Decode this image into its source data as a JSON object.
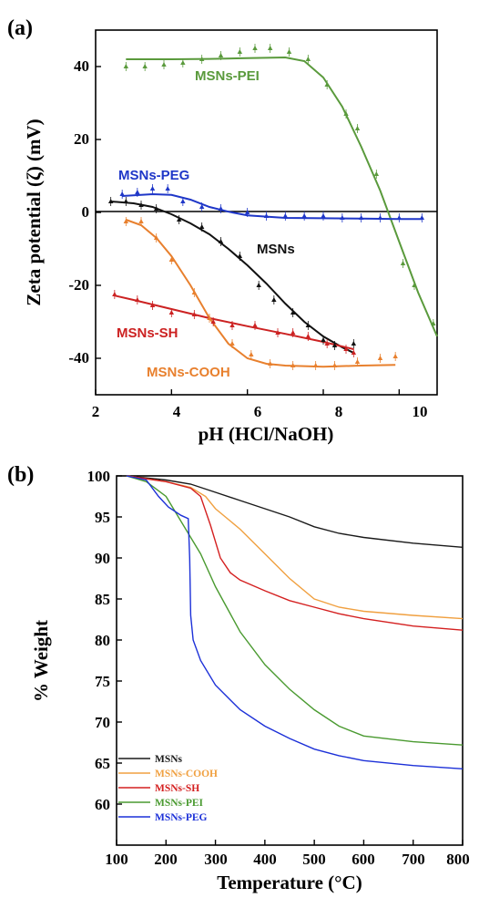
{
  "chart_data": [
    {
      "panel": "(a)",
      "type": "scatter",
      "xlabel": "pH (HCl/NaOH)",
      "ylabel": "Zeta potential (ζ) (mV)",
      "xlim": [
        2,
        11
      ],
      "ylim": [
        -50,
        50
      ],
      "xticks": [
        "2",
        "4",
        "6",
        "8",
        "10"
      ],
      "yticks": [
        "40",
        "20",
        "0",
        "-20",
        "-40"
      ],
      "zero_line": true,
      "series": [
        {
          "name": "MSNs-PEI",
          "color": "#5a9a3c",
          "points": [
            [
              2.8,
              40
            ],
            [
              3.3,
              40
            ],
            [
              3.8,
              40.5
            ],
            [
              4.3,
              41
            ],
            [
              4.8,
              42
            ],
            [
              5.3,
              43
            ],
            [
              5.8,
              44
            ],
            [
              6.2,
              45
            ],
            [
              6.6,
              45
            ],
            [
              7.1,
              44
            ],
            [
              7.6,
              42
            ],
            [
              8.1,
              35
            ],
            [
              8.6,
              27
            ],
            [
              8.9,
              23
            ],
            [
              9.4,
              10.5
            ],
            [
              10.1,
              -14
            ],
            [
              10.4,
              -20
            ],
            [
              10.9,
              -30.5
            ]
          ],
          "fit": [
            [
              2.8,
              42
            ],
            [
              4,
              42
            ],
            [
              5,
              42.1
            ],
            [
              6,
              42.3
            ],
            [
              7,
              42.5
            ],
            [
              7.5,
              41.5
            ],
            [
              8,
              37
            ],
            [
              8.5,
              29
            ],
            [
              9,
              18
            ],
            [
              9.5,
              6
            ],
            [
              10,
              -8
            ],
            [
              10.5,
              -22
            ],
            [
              11,
              -34
            ]
          ]
        },
        {
          "name": "MSNs-PEG",
          "color": "#1f37c8",
          "points": [
            [
              2.7,
              5
            ],
            [
              3.1,
              5.5
            ],
            [
              3.5,
              6.5
            ],
            [
              3.9,
              6.5
            ],
            [
              4.3,
              3
            ],
            [
              4.8,
              1.5
            ],
            [
              5.3,
              1
            ],
            [
              6.0,
              0
            ],
            [
              6.5,
              -1
            ],
            [
              7.0,
              -1
            ],
            [
              7.5,
              -1
            ],
            [
              8.0,
              -1
            ],
            [
              8.5,
              -1.5
            ],
            [
              9.0,
              -1.5
            ],
            [
              9.5,
              -1.5
            ],
            [
              10.0,
              -1.5
            ],
            [
              10.6,
              -1.5
            ]
          ],
          "fit": [
            [
              2.7,
              4.5
            ],
            [
              3.5,
              5
            ],
            [
              4,
              4.8
            ],
            [
              4.5,
              3.5
            ],
            [
              5,
              1.5
            ],
            [
              5.5,
              0.2
            ],
            [
              6,
              -0.8
            ],
            [
              7,
              -1.5
            ],
            [
              8,
              -1.6
            ],
            [
              9,
              -1.7
            ],
            [
              10,
              -1.8
            ],
            [
              10.6,
              -1.8
            ]
          ]
        },
        {
          "name": "MSNs",
          "color": "#111111",
          "points": [
            [
              2.4,
              3
            ],
            [
              2.8,
              3
            ],
            [
              3.2,
              2
            ],
            [
              3.6,
              1
            ],
            [
              4.2,
              -2
            ],
            [
              4.8,
              -4
            ],
            [
              5.3,
              -8
            ],
            [
              5.8,
              -12
            ],
            [
              6.3,
              -20
            ],
            [
              6.7,
              -24
            ],
            [
              7.2,
              -27.5
            ],
            [
              7.6,
              -31
            ],
            [
              8.0,
              -35
            ],
            [
              8.3,
              -36.5
            ],
            [
              8.8,
              -36
            ]
          ],
          "fit": [
            [
              2.4,
              3
            ],
            [
              3,
              2.5
            ],
            [
              3.5,
              1.5
            ],
            [
              4,
              -0.5
            ],
            [
              4.5,
              -3
            ],
            [
              5,
              -6
            ],
            [
              5.5,
              -10
            ],
            [
              6,
              -14.5
            ],
            [
              6.5,
              -19.5
            ],
            [
              7,
              -25
            ],
            [
              7.5,
              -30
            ],
            [
              8,
              -34
            ],
            [
              8.5,
              -37
            ],
            [
              8.8,
              -38.5
            ]
          ]
        },
        {
          "name": "MSNs-COOH",
          "color": "#e8802e",
          "points": [
            [
              2.8,
              -2.5
            ],
            [
              3.2,
              -2.5
            ],
            [
              3.6,
              -7
            ],
            [
              4.0,
              -13
            ],
            [
              4.6,
              -22
            ],
            [
              5.0,
              -29
            ],
            [
              5.6,
              -36
            ],
            [
              6.1,
              -39
            ],
            [
              6.6,
              -41.5
            ],
            [
              7.2,
              -42
            ],
            [
              7.8,
              -42
            ],
            [
              8.3,
              -42
            ],
            [
              8.9,
              -41
            ],
            [
              9.5,
              -40
            ],
            [
              9.9,
              -39.5
            ]
          ],
          "fit": [
            [
              2.8,
              -2
            ],
            [
              3.2,
              -3.5
            ],
            [
              3.6,
              -7
            ],
            [
              4,
              -12
            ],
            [
              4.5,
              -20
            ],
            [
              5,
              -29
            ],
            [
              5.5,
              -36
            ],
            [
              6,
              -40
            ],
            [
              6.5,
              -41.5
            ],
            [
              7,
              -42
            ],
            [
              8,
              -42.3
            ],
            [
              9,
              -42
            ],
            [
              9.9,
              -41.8
            ]
          ]
        },
        {
          "name": "MSNs-SH",
          "color": "#cc2222",
          "points": [
            [
              2.5,
              -22.5
            ],
            [
              3.1,
              -24
            ],
            [
              3.5,
              -25.5
            ],
            [
              4.0,
              -27.5
            ],
            [
              4.6,
              -28
            ],
            [
              5.1,
              -30
            ],
            [
              5.6,
              -31
            ],
            [
              6.2,
              -31
            ],
            [
              6.8,
              -33
            ],
            [
              7.2,
              -33
            ],
            [
              7.6,
              -34
            ],
            [
              8.1,
              -36
            ],
            [
              8.6,
              -37.5
            ],
            [
              8.8,
              -38.5
            ]
          ],
          "fit": [
            [
              2.5,
              -22.8
            ],
            [
              3,
              -24
            ],
            [
              4,
              -26.5
            ],
            [
              5,
              -29
            ],
            [
              6,
              -31.2
            ],
            [
              7,
              -33.3
            ],
            [
              8,
              -35.5
            ],
            [
              8.8,
              -37.5
            ]
          ]
        }
      ]
    },
    {
      "panel": "(b)",
      "type": "line",
      "xlabel": "Temperature (°C)",
      "ylabel": "% Weight",
      "xlim": [
        100,
        800
      ],
      "ylim": [
        55,
        100
      ],
      "xticks": [
        "100",
        "200",
        "300",
        "400",
        "500",
        "600",
        "700",
        "800"
      ],
      "yticks": [
        "100",
        "95",
        "90",
        "85",
        "80",
        "75",
        "70",
        "65",
        "60"
      ],
      "series": [
        {
          "name": "MSNs",
          "color": "#1a1a1a",
          "points": [
            [
              120,
              100
            ],
            [
              200,
              99.5
            ],
            [
              250,
              99
            ],
            [
              300,
              98
            ],
            [
              350,
              97
            ],
            [
              400,
              96
            ],
            [
              450,
              95
            ],
            [
              500,
              93.8
            ],
            [
              550,
              93
            ],
            [
              600,
              92.5
            ],
            [
              700,
              91.8
            ],
            [
              800,
              91.3
            ]
          ]
        },
        {
          "name": "MSNs-COOH",
          "color": "#f0a040",
          "points": [
            [
              120,
              100
            ],
            [
              200,
              99.3
            ],
            [
              250,
              98.6
            ],
            [
              280,
              97.5
            ],
            [
              300,
              96
            ],
            [
              350,
              93.5
            ],
            [
              400,
              90.5
            ],
            [
              450,
              87.5
            ],
            [
              500,
              85
            ],
            [
              550,
              84
            ],
            [
              600,
              83.5
            ],
            [
              700,
              83
            ],
            [
              800,
              82.6
            ]
          ]
        },
        {
          "name": "MSNs-SH",
          "color": "#d42020",
          "points": [
            [
              120,
              100
            ],
            [
              200,
              99.3
            ],
            [
              250,
              98.5
            ],
            [
              270,
              97.5
            ],
            [
              290,
              94
            ],
            [
              310,
              90
            ],
            [
              330,
              88.2
            ],
            [
              350,
              87.3
            ],
            [
              400,
              86
            ],
            [
              450,
              84.8
            ],
            [
              500,
              84
            ],
            [
              550,
              83.2
            ],
            [
              600,
              82.6
            ],
            [
              700,
              81.7
            ],
            [
              800,
              81.2
            ]
          ]
        },
        {
          "name": "MSNs-PEI",
          "color": "#4a9a30",
          "points": [
            [
              120,
              100
            ],
            [
              160,
              99.3
            ],
            [
              200,
              97.5
            ],
            [
              240,
              93.5
            ],
            [
              270,
              90.5
            ],
            [
              300,
              86.5
            ],
            [
              350,
              81
            ],
            [
              400,
              77
            ],
            [
              450,
              74
            ],
            [
              500,
              71.5
            ],
            [
              550,
              69.5
            ],
            [
              600,
              68.3
            ],
            [
              700,
              67.6
            ],
            [
              800,
              67.2
            ]
          ]
        },
        {
          "name": "MSNs-PEG",
          "color": "#1c30d8",
          "points": [
            [
              120,
              100
            ],
            [
              160,
              99.5
            ],
            [
              185,
              97.5
            ],
            [
              205,
              96.2
            ],
            [
              230,
              95.2
            ],
            [
              245,
              94.8
            ],
            [
              248,
              90
            ],
            [
              250,
              83
            ],
            [
              255,
              80
            ],
            [
              270,
              77.5
            ],
            [
              300,
              74.5
            ],
            [
              350,
              71.5
            ],
            [
              400,
              69.5
            ],
            [
              450,
              68
            ],
            [
              500,
              66.7
            ],
            [
              550,
              65.9
            ],
            [
              600,
              65.3
            ],
            [
              700,
              64.7
            ],
            [
              800,
              64.3
            ]
          ]
        }
      ]
    }
  ]
}
